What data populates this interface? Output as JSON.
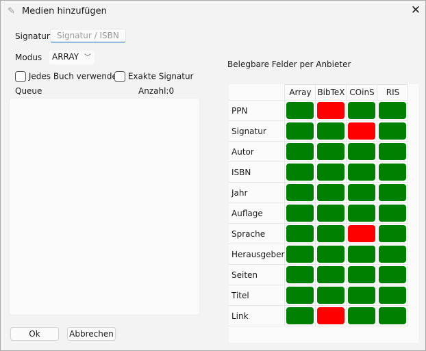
{
  "window": {
    "title": "Medien hinzufügen",
    "icon": "pencil-icon",
    "close": "✕"
  },
  "form": {
    "signatur_label": "Signatur",
    "signatur_placeholder": "Signatur / ISBN",
    "signatur_value": "",
    "modus_label": "Modus",
    "modus_value": "ARRAY",
    "jedes_buch": "Jedes Buch verwenden",
    "jedes_buch_checked": false,
    "exakte_signatur": "Exakte Signatur",
    "exakte_signatur_checked": false,
    "queue_label": "Queue",
    "anzahl": "Anzahl:0"
  },
  "buttons": {
    "ok": "Ok",
    "cancel": "Abbrechen"
  },
  "fields_panel": {
    "title": "Belegbare Felder per Anbieter",
    "columns": [
      "Array",
      "BibTeX",
      "COinS",
      "RIS"
    ],
    "colors": {
      "available": "#008000",
      "unavailable": "#ff0000"
    },
    "rows": [
      {
        "label": "PPN",
        "values": [
          true,
          false,
          true,
          true
        ]
      },
      {
        "label": "Signatur",
        "values": [
          true,
          true,
          false,
          true
        ]
      },
      {
        "label": "Autor",
        "values": [
          true,
          true,
          true,
          true
        ]
      },
      {
        "label": "ISBN",
        "values": [
          true,
          true,
          true,
          true
        ]
      },
      {
        "label": "Jahr",
        "values": [
          true,
          true,
          true,
          true
        ]
      },
      {
        "label": "Auflage",
        "values": [
          true,
          true,
          true,
          true
        ]
      },
      {
        "label": "Sprache",
        "values": [
          true,
          true,
          false,
          true
        ]
      },
      {
        "label": "Herausgeber",
        "values": [
          true,
          true,
          true,
          true
        ]
      },
      {
        "label": "Seiten",
        "values": [
          true,
          true,
          true,
          true
        ]
      },
      {
        "label": "Titel",
        "values": [
          true,
          true,
          true,
          true
        ]
      },
      {
        "label": "Link",
        "values": [
          true,
          false,
          true,
          true
        ]
      }
    ]
  }
}
